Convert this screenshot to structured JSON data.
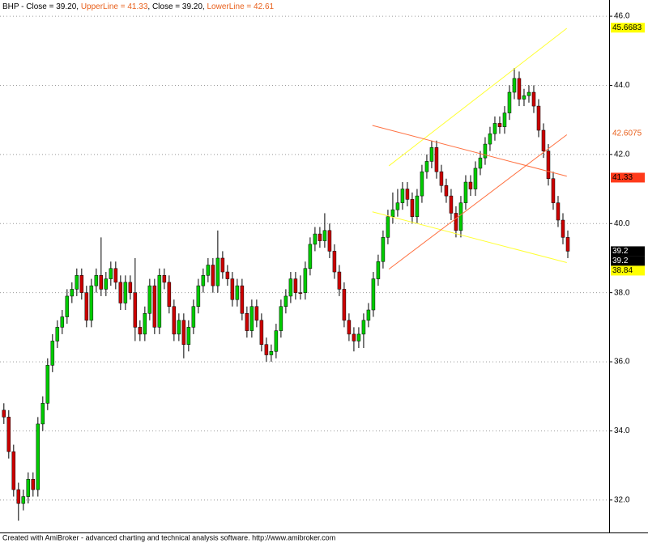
{
  "chart_data": {
    "type": "candlestick",
    "title_parts": [
      {
        "text": "BHP - Close = 39.20, ",
        "color": "#000000"
      },
      {
        "text": "UpperLine = 41.33",
        "color": "#e8601c"
      },
      {
        "text": ", Close = 39.20, ",
        "color": "#000000"
      },
      {
        "text": "LowerLine = 42.61",
        "color": "#e8601c"
      }
    ],
    "footer": "Created with AmiBroker - advanced charting and technical analysis software. http://www.amibroker.com",
    "up_color": "#00cc00",
    "down_color": "#cc0000",
    "ylim": [
      31.06,
      46.47
    ],
    "xlim": [
      -0.8,
      124.5
    ],
    "yticks": [
      {
        "value": 32,
        "label": "32.0"
      },
      {
        "value": 34,
        "label": "34.0"
      },
      {
        "value": 36,
        "label": "36.0"
      },
      {
        "value": 38,
        "label": "38.0"
      },
      {
        "value": 40,
        "label": "40.0"
      },
      {
        "value": 42,
        "label": "42.0"
      },
      {
        "value": 44,
        "label": "44.0"
      },
      {
        "value": 46,
        "label": "46.0"
      }
    ],
    "grid": true,
    "open": [
      34.6,
      34.4,
      33.4,
      32.3,
      31.9,
      32.1,
      32.6,
      32.3,
      34.2,
      34.8,
      35.9,
      36.6,
      37.0,
      37.3,
      37.9,
      38.1,
      38.5,
      38.0,
      37.2,
      38.2,
      38.5,
      38.1,
      38.4,
      38.7,
      38.3,
      37.7,
      38.3,
      38.0,
      37.0,
      36.8,
      37.4,
      38.2,
      37.0,
      38.5,
      38.3,
      37.6,
      36.8,
      37.2,
      36.5,
      37.0,
      37.6,
      38.2,
      38.5,
      38.8,
      38.2,
      39.0,
      38.6,
      38.4,
      37.8,
      38.2,
      37.4,
      36.9,
      37.6,
      37.2,
      36.5,
      36.2,
      36.3,
      36.9,
      37.6,
      37.9,
      38.4,
      38.0,
      38.0,
      38.7,
      39.4,
      39.7,
      39.5,
      39.8,
      39.2,
      38.6,
      38.1,
      37.2,
      36.8,
      36.6,
      36.8,
      37.2,
      37.5,
      38.4,
      38.9,
      39.6,
      40.2,
      40.4,
      40.6,
      41.0,
      40.7,
      40.2,
      40.8,
      41.5,
      41.8,
      42.2,
      41.5,
      41.1,
      40.8,
      40.3,
      39.8,
      40.6,
      41.2,
      41.0,
      41.6,
      41.9,
      42.3,
      42.6,
      42.9,
      42.8,
      43.2,
      43.8,
      44.2,
      43.6,
      43.7,
      43.8,
      43.4,
      42.7,
      42.1,
      41.3,
      40.6,
      40.1,
      39.6
    ],
    "high": [
      34.8,
      34.6,
      33.6,
      32.5,
      32.3,
      32.8,
      32.8,
      34.4,
      35.0,
      36.1,
      36.8,
      37.2,
      37.5,
      38.1,
      38.3,
      38.7,
      38.7,
      38.2,
      38.4,
      38.7,
      39.6,
      38.6,
      38.9,
      38.9,
      38.5,
      38.5,
      38.5,
      39.0,
      37.2,
      37.6,
      38.4,
      38.4,
      38.7,
      38.7,
      38.5,
      37.8,
      37.4,
      37.4,
      37.2,
      37.8,
      38.4,
      38.7,
      39.0,
      39.0,
      39.8,
      39.2,
      38.8,
      38.6,
      38.4,
      38.4,
      37.6,
      37.8,
      37.8,
      37.4,
      36.7,
      36.5,
      37.1,
      37.8,
      38.1,
      38.6,
      38.6,
      38.5,
      38.9,
      39.6,
      39.9,
      39.9,
      40.3,
      40.0,
      39.4,
      38.8,
      38.3,
      37.4,
      37.0,
      37.0,
      37.4,
      37.7,
      38.6,
      39.1,
      39.8,
      40.4,
      40.9,
      41.0,
      41.2,
      41.2,
      40.9,
      41.0,
      41.7,
      42.0,
      42.4,
      42.4,
      41.7,
      41.3,
      41.0,
      40.5,
      40.8,
      41.4,
      41.4,
      41.8,
      42.1,
      42.5,
      42.8,
      43.1,
      43.1,
      43.4,
      44.0,
      44.5,
      44.4,
      43.9,
      44.0,
      44.0,
      43.6,
      42.9,
      42.3,
      41.5,
      40.8,
      40.3,
      39.8
    ],
    "low": [
      34.2,
      33.2,
      32.1,
      31.4,
      31.7,
      31.9,
      32.1,
      32.1,
      34.0,
      34.6,
      35.7,
      36.4,
      36.8,
      37.1,
      37.7,
      37.9,
      37.8,
      37.0,
      37.0,
      38.0,
      37.9,
      37.9,
      38.2,
      38.1,
      37.5,
      37.5,
      37.8,
      36.6,
      36.6,
      36.6,
      37.2,
      36.8,
      36.8,
      38.1,
      37.4,
      36.6,
      36.6,
      36.1,
      36.3,
      36.8,
      37.4,
      38.0,
      38.3,
      38.0,
      38.0,
      38.4,
      38.2,
      37.6,
      37.6,
      37.2,
      36.7,
      36.7,
      37.0,
      36.3,
      36.0,
      36.0,
      36.1,
      36.7,
      37.4,
      37.7,
      37.8,
      37.8,
      37.8,
      38.5,
      39.2,
      39.3,
      39.3,
      39.0,
      38.4,
      37.9,
      37.0,
      36.6,
      36.3,
      36.4,
      36.4,
      37.0,
      37.3,
      38.2,
      38.7,
      39.4,
      40.0,
      40.2,
      40.4,
      40.5,
      40.0,
      40.0,
      40.6,
      41.3,
      41.6,
      41.3,
      40.9,
      40.6,
      40.1,
      39.6,
      39.6,
      40.4,
      40.8,
      40.8,
      41.4,
      41.7,
      42.1,
      42.4,
      42.6,
      42.6,
      43.0,
      43.6,
      43.4,
      43.4,
      43.5,
      43.2,
      42.5,
      41.9,
      41.1,
      40.4,
      39.9,
      39.4,
      39.0
    ],
    "close": [
      34.4,
      33.4,
      32.3,
      31.9,
      32.1,
      32.6,
      32.3,
      34.2,
      34.8,
      35.9,
      36.6,
      37.0,
      37.3,
      37.9,
      38.1,
      38.5,
      38.0,
      37.2,
      38.2,
      38.5,
      38.1,
      38.4,
      38.7,
      38.3,
      37.7,
      38.3,
      38.0,
      37.0,
      36.8,
      37.4,
      38.2,
      37.0,
      38.5,
      38.3,
      37.6,
      36.8,
      37.2,
      36.5,
      37.0,
      37.6,
      38.2,
      38.5,
      38.8,
      38.2,
      39.0,
      38.6,
      38.4,
      37.8,
      38.2,
      37.4,
      36.9,
      37.6,
      37.2,
      36.5,
      36.2,
      36.3,
      36.9,
      37.6,
      37.9,
      38.4,
      38.0,
      38.0,
      38.7,
      39.4,
      39.7,
      39.5,
      39.8,
      39.2,
      38.6,
      38.1,
      37.2,
      36.8,
      36.6,
      36.8,
      37.2,
      37.5,
      38.4,
      38.9,
      39.6,
      40.2,
      40.4,
      40.6,
      41.0,
      40.7,
      40.2,
      40.8,
      41.5,
      41.8,
      42.2,
      41.5,
      41.1,
      40.8,
      40.3,
      39.8,
      40.6,
      41.2,
      41.0,
      41.6,
      41.9,
      42.3,
      42.6,
      42.9,
      42.8,
      43.2,
      43.8,
      44.2,
      43.6,
      43.7,
      43.8,
      43.4,
      42.7,
      42.1,
      41.3,
      40.6,
      40.1,
      39.6,
      39.2
    ],
    "trend_lines": [
      {
        "color": "#ffff33",
        "x": [
          79.2,
          115.8
        ],
        "y": [
          41.67,
          45.65
        ]
      },
      {
        "color": "#ffff33",
        "x": [
          75.8,
          115.8
        ],
        "y": [
          40.34,
          38.87
        ]
      },
      {
        "color": "#ff7040",
        "x": [
          75.8,
          115.8
        ],
        "y": [
          42.84,
          41.37
        ]
      },
      {
        "color": "#ff7040",
        "x": [
          79.2,
          115.8
        ],
        "y": [
          38.68,
          42.57
        ]
      }
    ],
    "axis_markers": [
      {
        "value": 45.6683,
        "background": "#ffff00",
        "color": "#000000"
      },
      {
        "value": 42.6075,
        "background": "#ffffff",
        "color": "#e8601c"
      },
      {
        "value": 41.33,
        "background": "#ff3a1a",
        "color": "#000000"
      },
      {
        "value": 39.2,
        "background": "#000000",
        "color": "#ffffff"
      },
      {
        "value": 39.2,
        "background": "#000000",
        "color": "#ffffff"
      },
      {
        "value": 38.84,
        "background": "#ffff00",
        "color": "#000000"
      }
    ]
  }
}
